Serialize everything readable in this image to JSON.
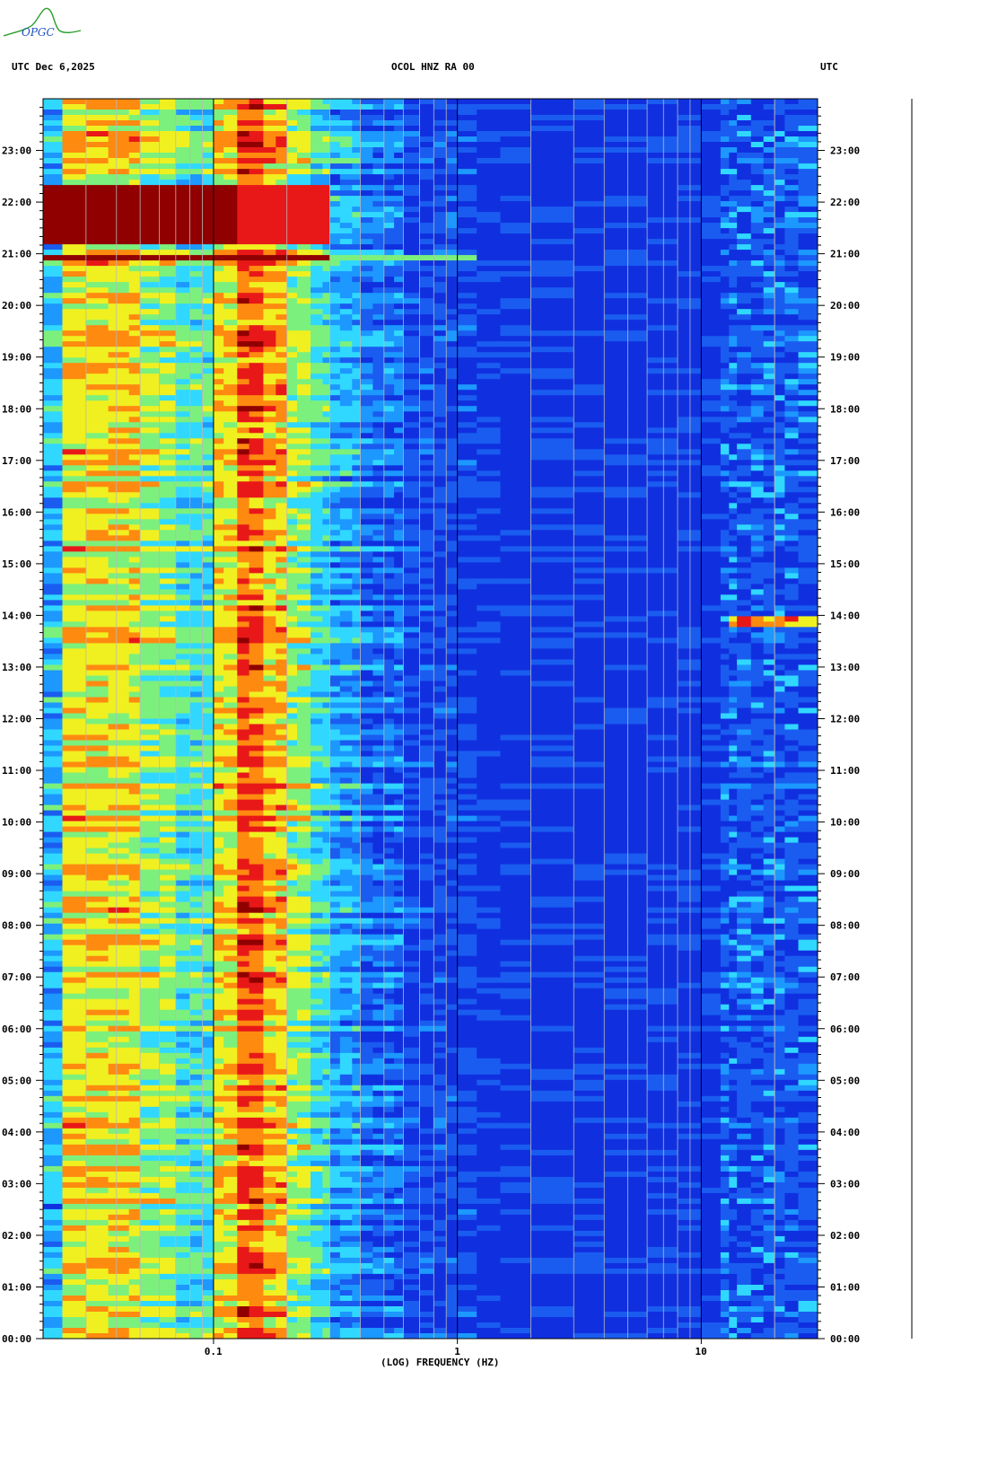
{
  "header": {
    "left": "UTC  Dec 6,2025",
    "center": "OCOL HNZ RA 00",
    "right": "UTC"
  },
  "logo_text": "OPGC",
  "colors": {
    "background": "#0a1ed2",
    "quiet": "#1030e0",
    "cyan": "#30d8ff",
    "yellow": "#f0f020",
    "orange": "#ff8a10",
    "red": "#e81818",
    "darkred": "#900000"
  },
  "chart_data": {
    "type": "heatmap",
    "title": "OCOL HNZ RA 00",
    "xlabel": "(LOG) FREQUENCY (HZ)",
    "ylabel": "UTC",
    "x_scale": "log",
    "xlim": [
      0.02,
      30
    ],
    "ylim": [
      0,
      24
    ],
    "x_ticks": [
      {
        "value": 0.1,
        "label": "0.1"
      },
      {
        "value": 1,
        "label": "1"
      },
      {
        "value": 10,
        "label": "10"
      }
    ],
    "y_ticks": [
      {
        "value": 0,
        "label": "00:00"
      },
      {
        "value": 1,
        "label": "01:00"
      },
      {
        "value": 2,
        "label": "02:00"
      },
      {
        "value": 3,
        "label": "03:00"
      },
      {
        "value": 4,
        "label": "04:00"
      },
      {
        "value": 5,
        "label": "05:00"
      },
      {
        "value": 6,
        "label": "06:00"
      },
      {
        "value": 7,
        "label": "07:00"
      },
      {
        "value": 8,
        "label": "08:00"
      },
      {
        "value": 9,
        "label": "09:00"
      },
      {
        "value": 10,
        "label": "10:00"
      },
      {
        "value": 11,
        "label": "11:00"
      },
      {
        "value": 12,
        "label": "12:00"
      },
      {
        "value": 13,
        "label": "13:00"
      },
      {
        "value": 14,
        "label": "14:00"
      },
      {
        "value": 15,
        "label": "15:00"
      },
      {
        "value": 16,
        "label": "16:00"
      },
      {
        "value": 17,
        "label": "17:00"
      },
      {
        "value": 18,
        "label": "18:00"
      },
      {
        "value": 19,
        "label": "19:00"
      },
      {
        "value": 20,
        "label": "20:00"
      },
      {
        "value": 21,
        "label": "21:00"
      },
      {
        "value": 22,
        "label": "22:00"
      },
      {
        "value": 23,
        "label": "23:00"
      }
    ],
    "events": [
      {
        "time_start": 21.2,
        "time_end": 22.3,
        "freq_max": 0.3
      },
      {
        "time_start": 20.9,
        "time_end": 21.0,
        "freq_max": 1.2
      },
      {
        "time_start": 13.8,
        "time_end": 14.0,
        "freq_min": 13,
        "freq_max": 30
      }
    ]
  }
}
